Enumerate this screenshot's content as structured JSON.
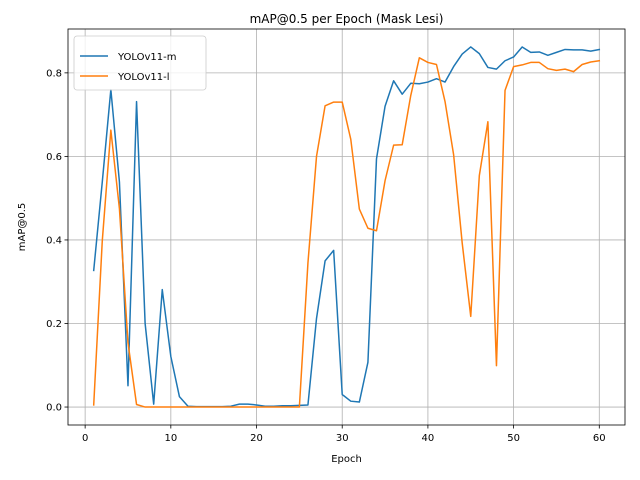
{
  "chart_data": {
    "type": "line",
    "title": "mAP@0.5 per Epoch (Mask Lesi)",
    "xlabel": "Epoch",
    "ylabel": "mAP@0.5",
    "xlim": [
      -2.0,
      63.0
    ],
    "ylim": [
      -0.043,
      0.905
    ],
    "xticks": [
      0,
      10,
      20,
      30,
      40,
      50,
      60
    ],
    "yticks": [
      0.0,
      0.2,
      0.4,
      0.6,
      0.8
    ],
    "ytick_labels": [
      "0.0",
      "0.2",
      "0.4",
      "0.6",
      "0.8"
    ],
    "grid": true,
    "legend_position": "upper-left",
    "x": [
      1,
      2,
      3,
      4,
      5,
      6,
      7,
      8,
      9,
      10,
      11,
      12,
      13,
      14,
      15,
      16,
      17,
      18,
      19,
      20,
      21,
      22,
      23,
      24,
      25,
      26,
      27,
      28,
      29,
      30,
      31,
      32,
      33,
      34,
      35,
      36,
      37,
      38,
      39,
      40,
      41,
      42,
      43,
      44,
      45,
      46,
      47,
      48,
      49,
      50,
      51,
      52,
      53,
      54,
      55,
      56,
      57,
      58,
      59,
      60
    ],
    "series": [
      {
        "name": "YOLOv11-m",
        "color": "#1f77b4",
        "values": [
          0.327,
          0.539,
          0.76,
          0.539,
          0.051,
          0.731,
          0.2,
          0.007,
          0.281,
          0.121,
          0.025,
          0.002,
          0.001,
          0.001,
          0.001,
          0.001,
          0.002,
          0.007,
          0.007,
          0.005,
          0.002,
          0.002,
          0.003,
          0.003,
          0.004,
          0.005,
          0.212,
          0.35,
          0.375,
          0.03,
          0.014,
          0.012,
          0.107,
          0.594,
          0.72,
          0.781,
          0.749,
          0.775,
          0.774,
          0.778,
          0.786,
          0.778,
          0.815,
          0.845,
          0.862,
          0.846,
          0.813,
          0.809,
          0.829,
          0.838,
          0.862,
          0.849,
          0.85,
          0.842,
          0.849,
          0.856,
          0.855,
          0.855,
          0.852,
          0.856
        ]
      },
      {
        "name": "YOLOv11-l",
        "color": "#ff7f0e",
        "values": [
          0.005,
          0.398,
          0.663,
          0.475,
          0.154,
          0.006,
          0.0,
          0.0,
          0.0,
          0.0,
          0.0,
          0.0,
          0.0,
          0.0,
          0.0,
          0.0,
          0.0,
          0.0,
          0.0,
          0.0,
          0.0,
          0.0,
          0.0,
          0.0,
          0.0,
          0.345,
          0.6,
          0.721,
          0.73,
          0.73,
          0.641,
          0.474,
          0.428,
          0.422,
          0.542,
          0.627,
          0.628,
          0.746,
          0.836,
          0.825,
          0.82,
          0.731,
          0.604,
          0.393,
          0.217,
          0.554,
          0.683,
          0.099,
          0.758,
          0.815,
          0.819,
          0.825,
          0.825,
          0.81,
          0.806,
          0.809,
          0.803,
          0.82,
          0.826,
          0.829
        ]
      }
    ]
  }
}
